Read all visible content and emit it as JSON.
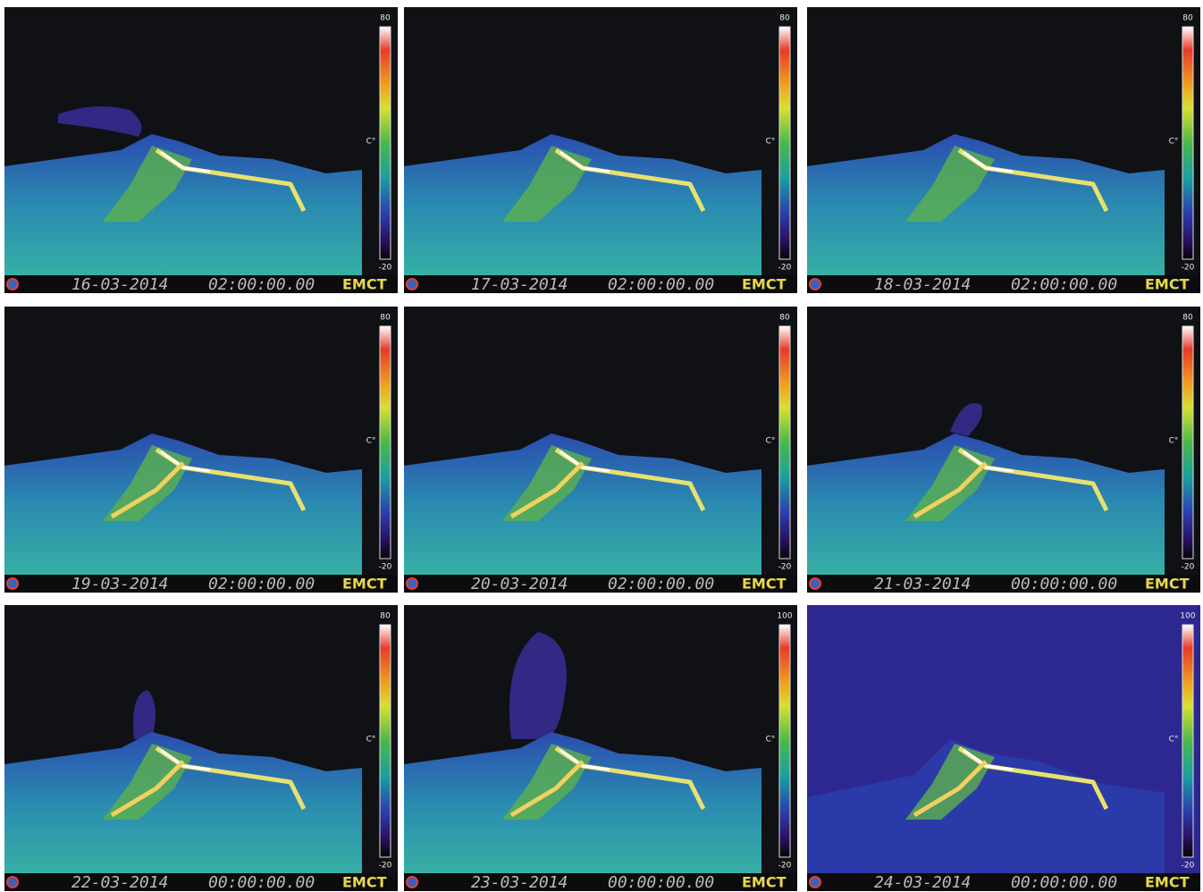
{
  "panels": [
    {
      "date": "16-03-2014",
      "time": "02:00:00.00",
      "label": "EMCT",
      "scale_max": "80",
      "unit": "C°",
      "scale_min": "-20"
    },
    {
      "date": "17-03-2014",
      "time": "02:00:00.00",
      "label": "EMCT",
      "scale_max": "80",
      "unit": "C°",
      "scale_min": "-20"
    },
    {
      "date": "18-03-2014",
      "time": "02:00:00.00",
      "label": "EMCT",
      "scale_max": "80",
      "unit": "C°",
      "scale_min": "-20"
    },
    {
      "date": "19-03-2014",
      "time": "02:00:00.00",
      "label": "EMCT",
      "scale_max": "80",
      "unit": "C°",
      "scale_min": "-20"
    },
    {
      "date": "20-03-2014",
      "time": "02:00:00.00",
      "label": "EMCT",
      "scale_max": "80",
      "unit": "C°",
      "scale_min": "-20"
    },
    {
      "date": "21-03-2014",
      "time": "00:00:00.00",
      "label": "EMCT",
      "scale_max": "80",
      "unit": "C°",
      "scale_min": "-20"
    },
    {
      "date": "22-03-2014",
      "time": "00:00:00.00",
      "label": "EMCT",
      "scale_max": "80",
      "unit": "C°",
      "scale_min": "-20"
    },
    {
      "date": "23-03-2014",
      "time": "00:00:00.00",
      "label": "EMCT",
      "scale_max": "100",
      "unit": "C°",
      "scale_min": "-20"
    },
    {
      "date": "24-03-2014",
      "time": "00:00:00.00",
      "label": "EMCT",
      "scale_max": "100",
      "unit": "C°",
      "scale_min": "-20"
    }
  ]
}
